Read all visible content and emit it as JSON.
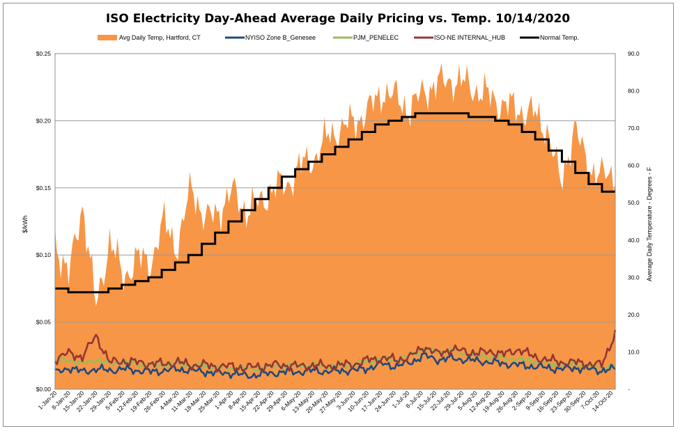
{
  "chart_data": {
    "type": "line",
    "title": "ISO Electricity Day-Ahead Average Daily Pricing vs. Temp. 10/14/2020",
    "ylabel_left": "$/kWh",
    "ylabel_right": "Average Daily Temperature - Degrees - F",
    "ylim_left": [
      0,
      0.25
    ],
    "ylim_right": [
      0,
      90
    ],
    "left_ticks": [
      "$0.00",
      "$0.05",
      "$0.10",
      "$0.15",
      "$0.20",
      "$0.25"
    ],
    "right_ticks": [
      "-",
      "10.0",
      "20.0",
      "30.0",
      "40.0",
      "50.0",
      "60.0",
      "70.0",
      "80.0",
      "90.0"
    ],
    "grid": "horizontal",
    "legend_position": "top",
    "x_tick_labels": [
      "1-Jan-20",
      "8-Jan-20",
      "15-Jan-20",
      "22-Jan-20",
      "29-Jan-20",
      "5-Feb-20",
      "12-Feb-20",
      "19-Feb-20",
      "26-Feb-20",
      "4-Mar-20",
      "11-Mar-20",
      "18-Mar-20",
      "25-Mar-20",
      "1-Apr-20",
      "8-Apr-20",
      "15-Apr-20",
      "22-Apr-20",
      "29-Apr-20",
      "6-May-20",
      "13-May-20",
      "20-May-20",
      "27-May-20",
      "3-Jun-20",
      "10-Jun-20",
      "17-Jun-20",
      "24-Jun-20",
      "1-Jul-20",
      "8-Jul-20",
      "15-Jul-20",
      "22-Jul-20",
      "29-Jul-20",
      "5-Aug-20",
      "12-Aug-20",
      "19-Aug-20",
      "26-Aug-20",
      "2-Sep-20",
      "9-Sep-20",
      "16-Sep-20",
      "23-Sep-20",
      "30-Sep-20",
      "7-Oct-20",
      "14-Oct-20"
    ],
    "weekly_points": {
      "temp_area_F": [
        40,
        30,
        50,
        22,
        40,
        30,
        35,
        34,
        45,
        38,
        55,
        45,
        48,
        53,
        48,
        50,
        54,
        55,
        60,
        62,
        68,
        70,
        72,
        75,
        80,
        78,
        75,
        80,
        82,
        83,
        82,
        80,
        78,
        76,
        75,
        74,
        70,
        55,
        70,
        60,
        57,
        58
      ],
      "normal_temp_F": [
        27,
        26,
        26,
        26,
        27,
        28,
        29,
        30,
        32,
        34,
        36,
        39,
        42,
        45,
        48,
        51,
        54,
        57,
        59,
        61,
        63,
        65,
        67,
        69,
        71,
        72,
        73,
        74,
        74,
        74,
        74,
        73,
        73,
        72,
        71,
        69,
        67,
        64,
        61,
        58,
        55,
        53
      ],
      "nyiso_zone_b": [
        0.012,
        0.016,
        0.013,
        0.015,
        0.014,
        0.015,
        0.014,
        0.013,
        0.014,
        0.015,
        0.014,
        0.013,
        0.012,
        0.012,
        0.01,
        0.011,
        0.012,
        0.013,
        0.013,
        0.014,
        0.013,
        0.014,
        0.014,
        0.016,
        0.019,
        0.017,
        0.02,
        0.025,
        0.022,
        0.023,
        0.022,
        0.021,
        0.02,
        0.019,
        0.018,
        0.017,
        0.016,
        0.015,
        0.016,
        0.015,
        0.014,
        0.015
      ],
      "pjm_penelec": [
        0.02,
        0.022,
        0.019,
        0.022,
        0.019,
        0.02,
        0.019,
        0.018,
        0.018,
        0.019,
        0.018,
        0.017,
        0.016,
        0.016,
        0.015,
        0.016,
        0.017,
        0.018,
        0.018,
        0.018,
        0.017,
        0.018,
        0.019,
        0.021,
        0.023,
        0.022,
        0.025,
        0.03,
        0.028,
        0.029,
        0.027,
        0.025,
        0.024,
        0.023,
        0.022,
        0.021,
        0.019,
        0.018,
        0.018,
        0.017,
        0.016,
        0.017
      ],
      "iso_ne_internal_hub": [
        0.022,
        0.027,
        0.024,
        0.04,
        0.02,
        0.021,
        0.02,
        0.019,
        0.019,
        0.02,
        0.018,
        0.018,
        0.017,
        0.017,
        0.016,
        0.017,
        0.018,
        0.018,
        0.017,
        0.018,
        0.017,
        0.018,
        0.019,
        0.022,
        0.023,
        0.022,
        0.024,
        0.032,
        0.026,
        0.03,
        0.028,
        0.027,
        0.028,
        0.026,
        0.03,
        0.024,
        0.022,
        0.02,
        0.02,
        0.019,
        0.018,
        0.042
      ]
    },
    "series": [
      {
        "name": "Avg Daily Temp, Hartford, CT",
        "color": "#f79646",
        "kind": "area",
        "axis": "right"
      },
      {
        "name": "NYISO Zone B_Genesee",
        "color": "#1f497d",
        "kind": "line",
        "axis": "left"
      },
      {
        "name": "PJM_PENELEC",
        "color": "#9bbb59",
        "kind": "line",
        "axis": "left"
      },
      {
        "name": "ISO-NE INTERNAL_HUB",
        "color": "#943634",
        "kind": "line",
        "axis": "left"
      },
      {
        "name": "Normal Temp.",
        "color": "#000000",
        "kind": "step-line",
        "axis": "right"
      }
    ]
  }
}
